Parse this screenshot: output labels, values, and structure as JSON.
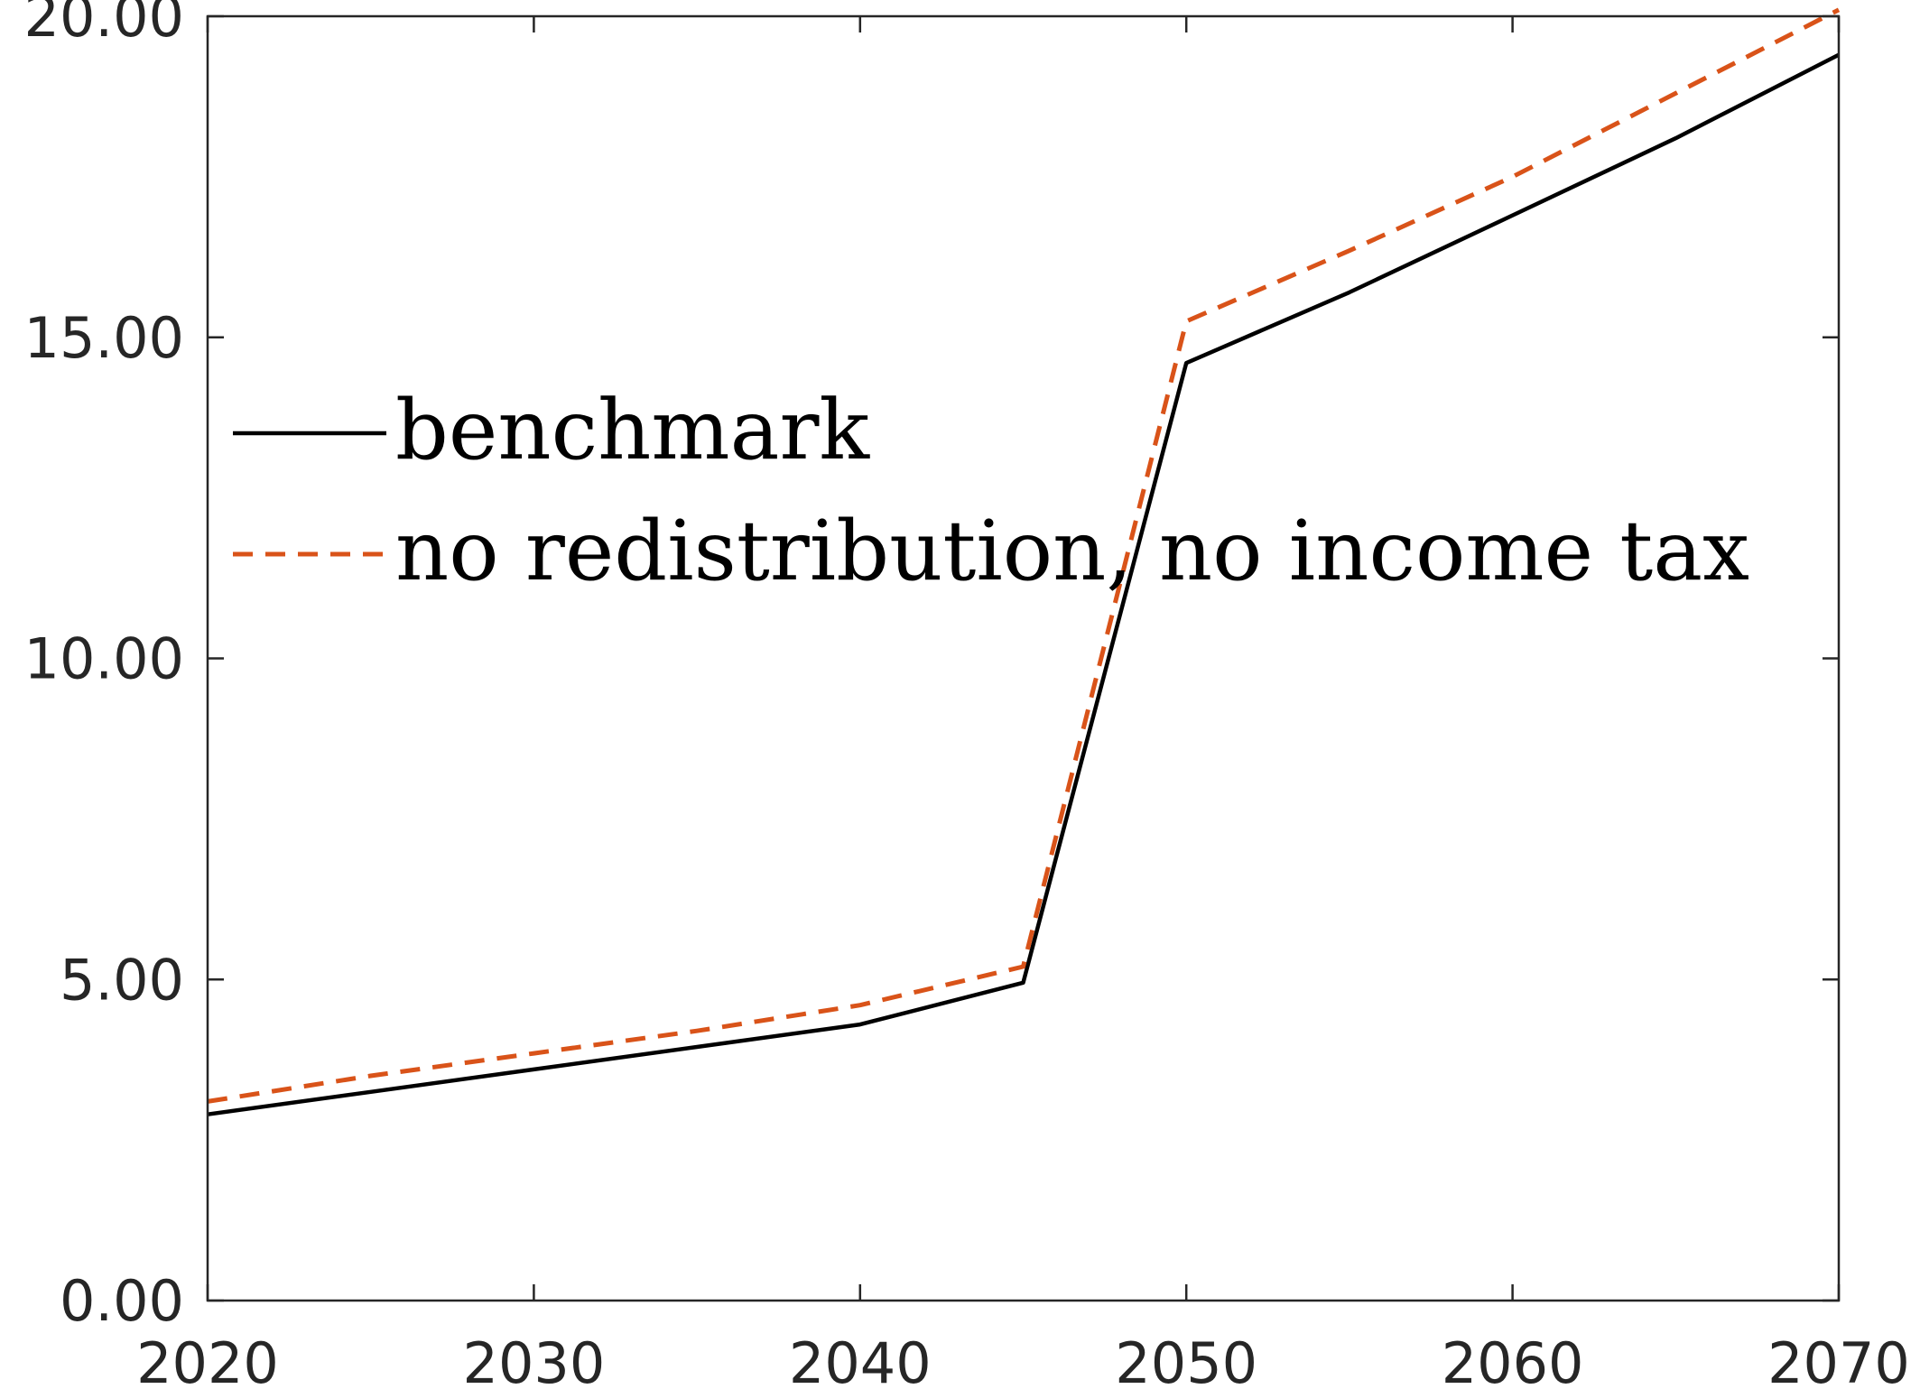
{
  "chart_data": {
    "type": "line",
    "title": "",
    "xlabel": "",
    "ylabel": "",
    "xlim": [
      2020,
      2070
    ],
    "ylim": [
      0,
      20
    ],
    "x_ticks": [
      2020,
      2030,
      2040,
      2050,
      2060,
      2070
    ],
    "y_ticks": [
      0,
      5,
      10,
      15,
      20
    ],
    "x_tick_labels": [
      "2020",
      "2030",
      "2040",
      "2050",
      "2060",
      "2070"
    ],
    "y_tick_labels": [
      "0.00",
      "5.00",
      "10.00",
      "15.00",
      "20.00"
    ],
    "grid": false,
    "legend_position": "upper-left",
    "series": [
      {
        "name": "benchmark",
        "color": "#000000",
        "line_style": "solid",
        "x": [
          2020,
          2025,
          2030,
          2035,
          2040,
          2045,
          2050,
          2055,
          2060,
          2065,
          2070
        ],
        "y": [
          2.9,
          3.25,
          3.6,
          3.95,
          4.3,
          4.95,
          14.6,
          15.7,
          16.9,
          18.1,
          19.4
        ]
      },
      {
        "name": "no redistribution, no income tax",
        "color": "#D95319",
        "line_style": "dashed",
        "x": [
          2020,
          2025,
          2030,
          2035,
          2040,
          2045,
          2050,
          2055,
          2060,
          2065,
          2070
        ],
        "y": [
          3.1,
          3.5,
          3.85,
          4.2,
          4.6,
          5.2,
          15.25,
          16.35,
          17.5,
          18.8,
          20.1
        ]
      }
    ]
  }
}
